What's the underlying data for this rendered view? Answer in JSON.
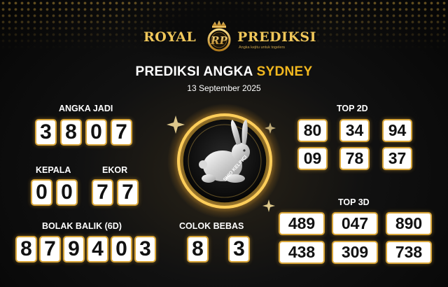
{
  "brand": {
    "name_left": "ROYAL",
    "name_right": "PREDIKSI",
    "emblem_text": "RP",
    "tagline": "Angka kejitu untuk togelers"
  },
  "title": {
    "prefix": "PREDIKSI ANGKA",
    "accent": "SYDNEY"
  },
  "date": "13 September 2025",
  "angka_jadi": {
    "label": "ANGKA JADI",
    "digits": [
      "3",
      "8",
      "0",
      "7"
    ]
  },
  "kepala": {
    "label": "KEPALA",
    "digits": [
      "0",
      "0"
    ]
  },
  "ekor": {
    "label": "EKOR",
    "digits": [
      "7",
      "7"
    ]
  },
  "bolak_balik": {
    "label": "BOLAK BALIK (6D)",
    "digits": [
      "8",
      "7",
      "9",
      "4",
      "0",
      "3"
    ]
  },
  "colok_bebas": {
    "label": "COLOK BEBAS",
    "digits": [
      "8",
      "3"
    ]
  },
  "top2d": {
    "label": "TOP 2D",
    "values": [
      "80",
      "34",
      "94",
      "09",
      "78",
      "37"
    ]
  },
  "top3d": {
    "label": "TOP 3D",
    "values": [
      "489",
      "047",
      "890",
      "438",
      "309",
      "738"
    ]
  },
  "shio": {
    "label": "SHIO KELINCI",
    "icon": "rabbit-icon"
  },
  "colors": {
    "gold": "#e9b949",
    "accent": "#f2b81f",
    "background": "#0b0b0b"
  }
}
